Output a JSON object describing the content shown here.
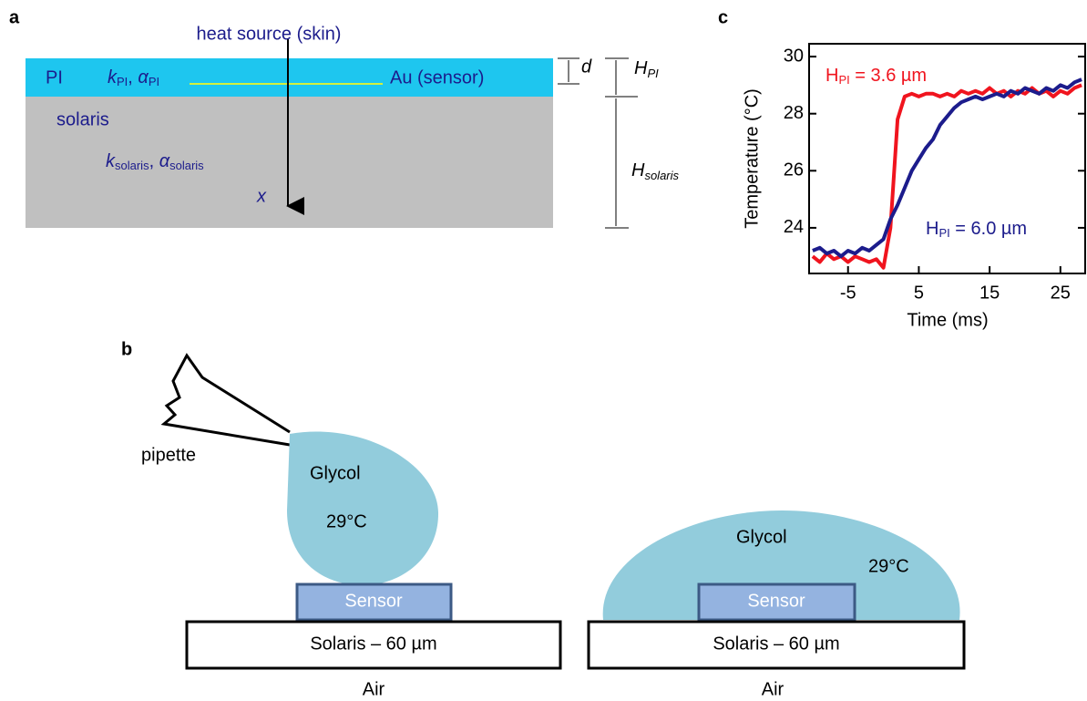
{
  "panel_a": {
    "label": "a",
    "heat_source": "heat source (skin)",
    "pi": "PI",
    "k_pi": {
      "k": "k",
      "sub": "PI"
    },
    "sep": ", ",
    "alpha_pi": {
      "a": "α",
      "sub": "PI"
    },
    "sensor": "Au (sensor)",
    "solaris": "solaris",
    "k_solaris": {
      "k": "k",
      "sub": "solaris"
    },
    "alpha_solaris": {
      "a": "α",
      "sub": "solaris"
    },
    "x": "x",
    "d": "d",
    "h_pi": {
      "h": "H",
      "sub": "PI"
    },
    "h_solaris": {
      "h": "H",
      "sub": "solaris"
    }
  },
  "panel_b": {
    "label": "b",
    "pipette": "pipette",
    "left": {
      "glycol": "Glycol",
      "temp": "29°C",
      "sensor": "Sensor",
      "substrate": "Solaris – 60 µm",
      "air": "Air"
    },
    "right": {
      "glycol": "Glycol",
      "temp": "29°C",
      "sensor": "Sensor",
      "substrate": "Solaris – 60 µm",
      "air": "Air"
    }
  },
  "chart_data": {
    "type": "line",
    "panel_label": "c",
    "x_label": "Time (ms)",
    "y_label": "Temperature (°C)",
    "x": [
      -10,
      -9,
      -8,
      -7,
      -6,
      -5,
      -4,
      -3,
      -2,
      -1,
      0,
      1,
      2,
      3,
      4,
      5,
      6,
      7,
      8,
      9,
      10,
      11,
      12,
      13,
      14,
      15,
      16,
      17,
      18,
      19,
      20,
      21,
      22,
      23,
      24,
      25,
      26,
      27,
      28
    ],
    "xlim": [
      -10.5,
      28.5
    ],
    "xticks": [
      -5,
      5,
      15,
      25
    ],
    "ylim": [
      22.4,
      30.45
    ],
    "yticks": [
      24,
      26,
      28,
      30
    ],
    "series": [
      {
        "name_base": "H",
        "name_sub": "PI",
        "name_rest": " = 3.6 µm",
        "color": "#f0141e",
        "values": [
          23.0,
          22.8,
          23.1,
          22.9,
          23.0,
          22.8,
          23.0,
          22.9,
          22.8,
          22.9,
          22.6,
          24.0,
          27.8,
          28.6,
          28.7,
          28.6,
          28.7,
          28.7,
          28.6,
          28.7,
          28.6,
          28.8,
          28.7,
          28.8,
          28.7,
          28.9,
          28.7,
          28.8,
          28.6,
          28.8,
          28.7,
          28.9,
          28.7,
          28.8,
          28.6,
          28.8,
          28.7,
          28.9,
          29.0
        ]
      },
      {
        "name_base": "H",
        "name_sub": "PI",
        "name_rest": " = 6.0 µm",
        "color": "#1c1c8c",
        "values": [
          23.2,
          23.3,
          23.1,
          23.2,
          23.0,
          23.2,
          23.1,
          23.3,
          23.2,
          23.4,
          23.6,
          24.3,
          24.8,
          25.4,
          26.0,
          26.4,
          26.8,
          27.1,
          27.6,
          27.9,
          28.2,
          28.4,
          28.5,
          28.6,
          28.5,
          28.6,
          28.7,
          28.6,
          28.8,
          28.7,
          28.9,
          28.8,
          28.7,
          28.9,
          28.8,
          29.0,
          28.9,
          29.1,
          29.2
        ]
      }
    ]
  }
}
